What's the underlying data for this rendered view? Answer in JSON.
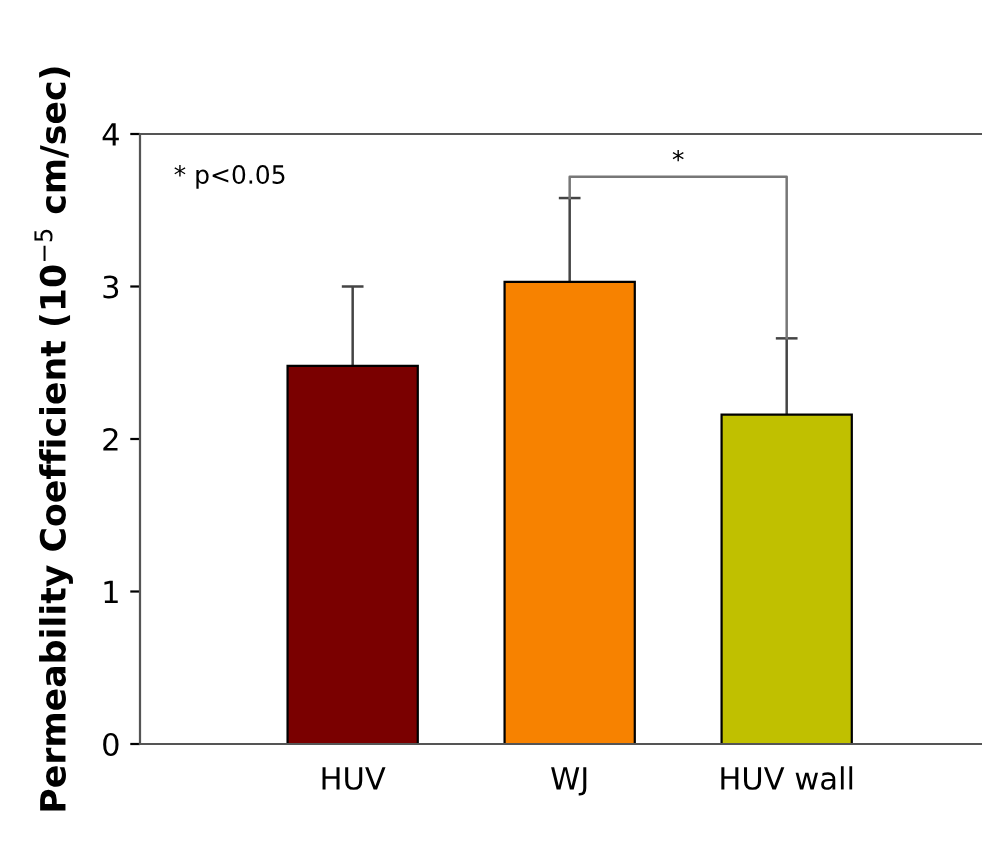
{
  "chart_data": {
    "type": "bar",
    "ylabel": "Permeability Coefficient (10$^{−5}$ cm/sec)",
    "categories": [
      "HUV",
      "WJ",
      "HUV wall"
    ],
    "values": [
      2.48,
      3.03,
      2.16
    ],
    "colors": [
      "#7a0000",
      "#f78200",
      "#c0c000"
    ],
    "errors": [
      [
        2.48,
        3.0
      ],
      [
        3.03,
        3.58
      ],
      [
        2.16,
        2.66
      ]
    ],
    "ylim": [
      0,
      4
    ],
    "yticks": [
      0,
      1,
      2,
      3,
      4
    ],
    "grid": false,
    "legend": false,
    "annotations": [
      "* p<0.05",
      "*"
    ]
  }
}
